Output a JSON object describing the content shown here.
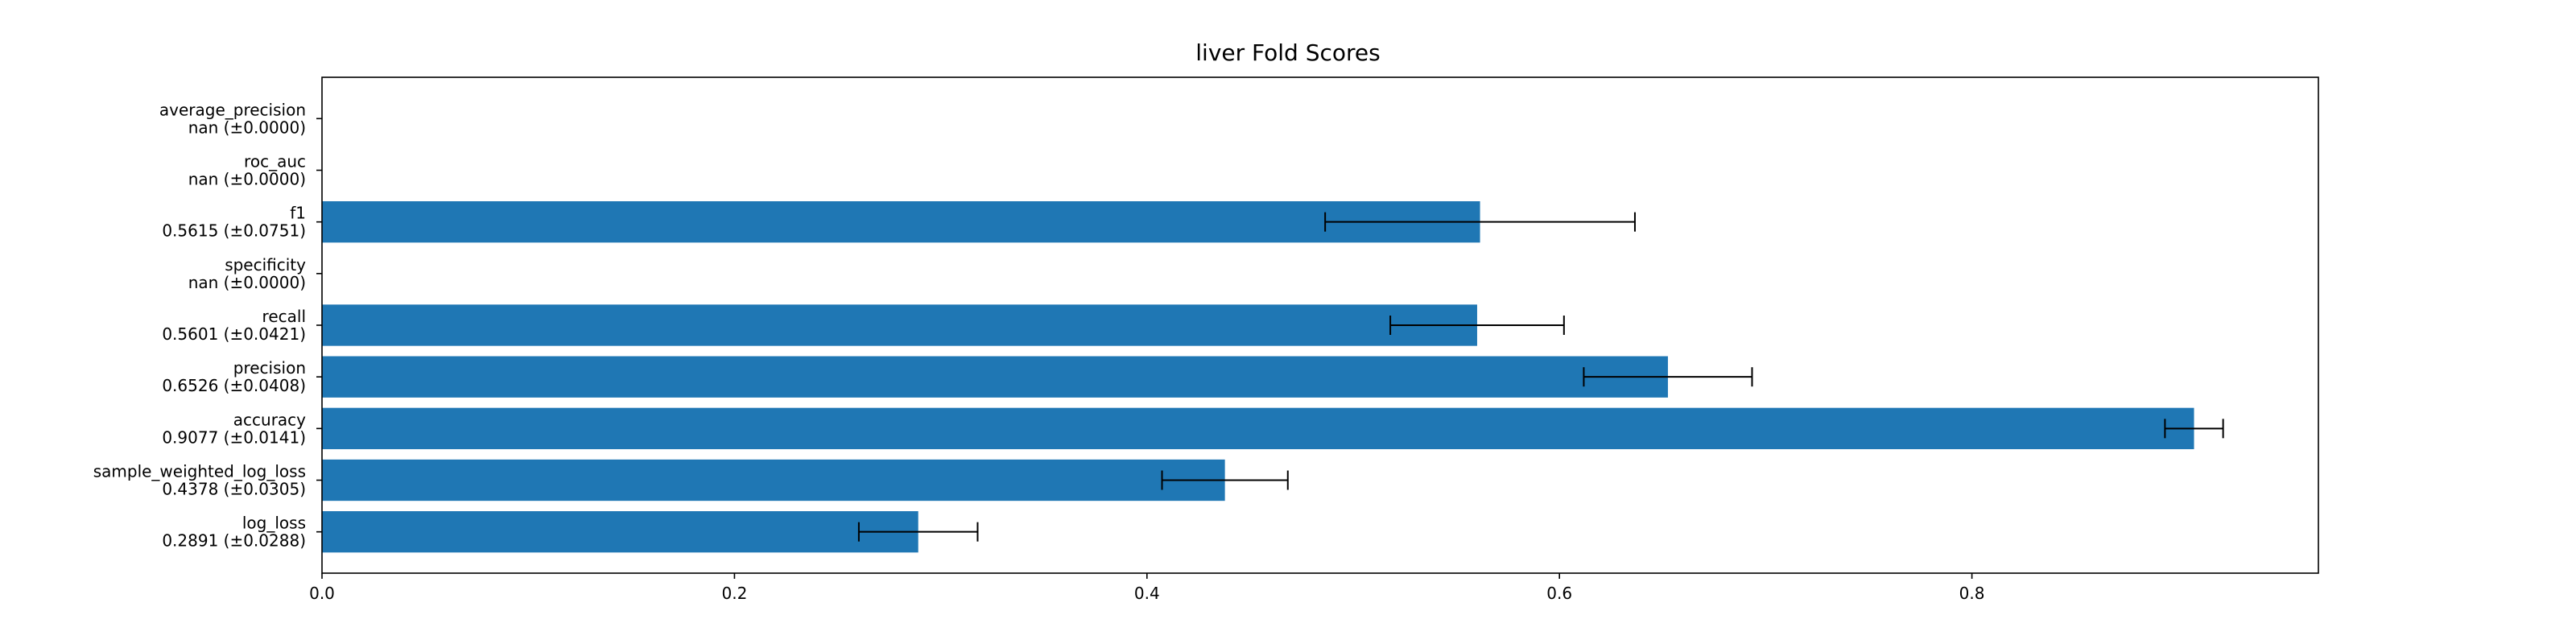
{
  "chart_data": {
    "type": "bar",
    "orientation": "horizontal",
    "title": "liver Fold Scores",
    "xlabel": "",
    "ylabel": "",
    "xlim": [
      0,
      0.968
    ],
    "xticks": [
      0.0,
      0.2,
      0.4,
      0.6,
      0.8
    ],
    "xtick_labels": [
      "0.0",
      "0.2",
      "0.4",
      "0.6",
      "0.8"
    ],
    "grid": false,
    "bar_color": "#1f77b4",
    "error_color": "#000000",
    "categories": [
      {
        "name": "log_loss",
        "label": "0.2891 (±0.0288)",
        "value": 0.2891,
        "error": 0.0288
      },
      {
        "name": "sample_weighted_log_loss",
        "label": "0.4378 (±0.0305)",
        "value": 0.4378,
        "error": 0.0305
      },
      {
        "name": "accuracy",
        "label": "0.9077 (±0.0141)",
        "value": 0.9077,
        "error": 0.0141
      },
      {
        "name": "precision",
        "label": "0.6526 (±0.0408)",
        "value": 0.6526,
        "error": 0.0408
      },
      {
        "name": "recall",
        "label": "0.5601 (±0.0421)",
        "value": 0.5601,
        "error": 0.0421
      },
      {
        "name": "specificity",
        "label": "nan (±0.0000)",
        "value": null,
        "error": 0.0
      },
      {
        "name": "f1",
        "label": "0.5615 (±0.0751)",
        "value": 0.5615,
        "error": 0.0751
      },
      {
        "name": "roc_auc",
        "label": "nan (±0.0000)",
        "value": null,
        "error": 0.0
      },
      {
        "name": "average_precision",
        "label": "nan (±0.0000)",
        "value": null,
        "error": 0.0
      }
    ]
  }
}
